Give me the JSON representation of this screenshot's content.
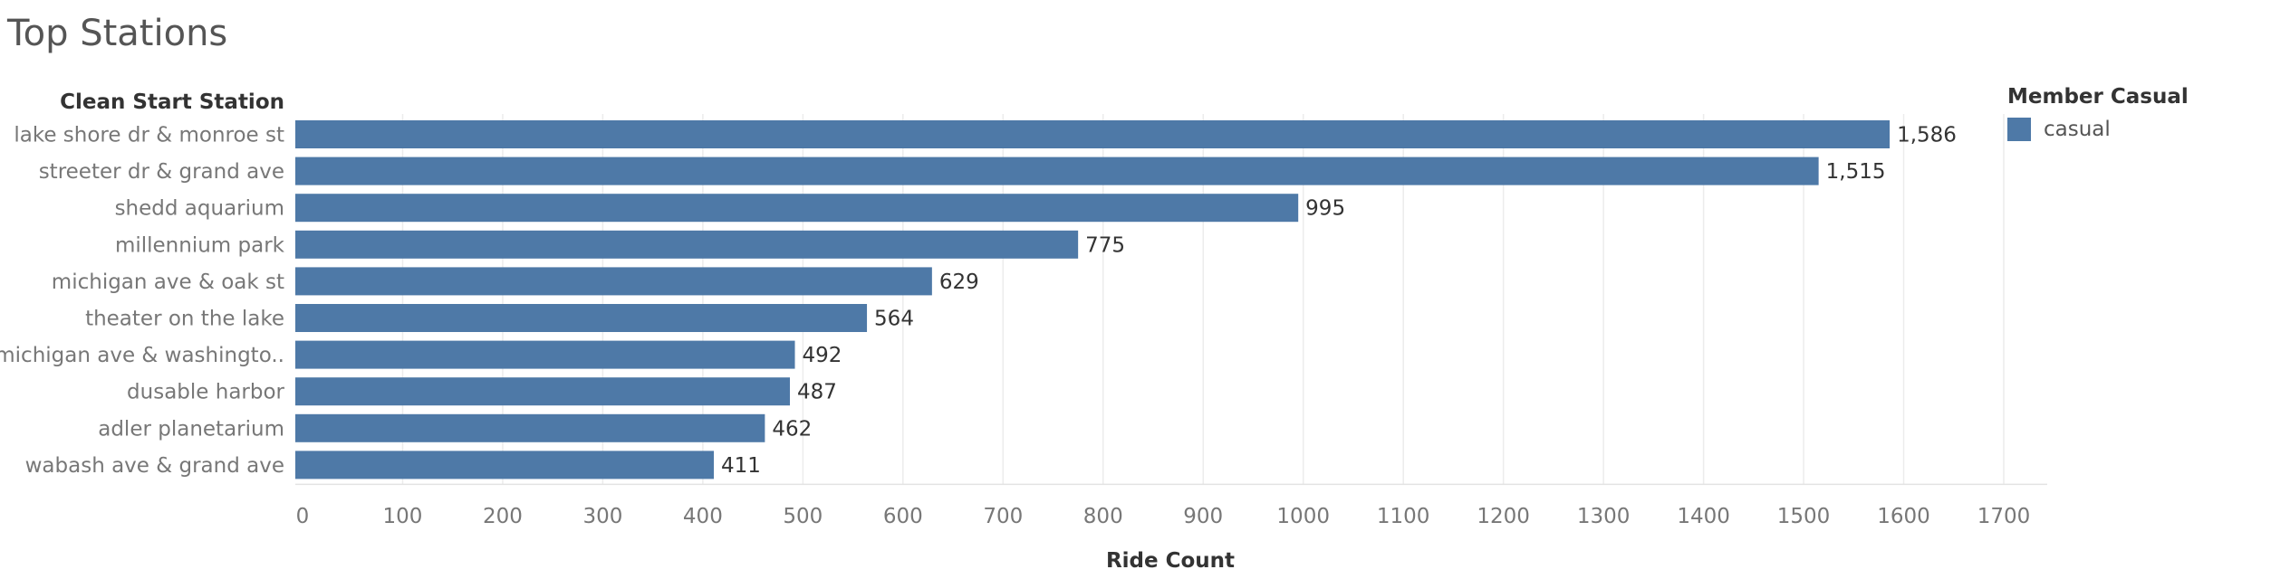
{
  "title": "Top Stations",
  "colors": {
    "bar": "#4e79a7",
    "grid": "#ececec",
    "text_dark": "#333333",
    "text_muted": "#777777"
  },
  "legend": {
    "title": "Member Casual",
    "items": [
      {
        "label": "casual",
        "color": "#4e79a7"
      }
    ]
  },
  "chart_data": {
    "type": "bar",
    "orientation": "horizontal",
    "title": "Top Stations",
    "ylabel": "Clean Start Station",
    "xlabel": "Ride Count",
    "categories": [
      "lake shore dr & monroe st",
      "streeter dr & grand ave",
      "shedd aquarium",
      "millennium park",
      "michigan ave & oak st",
      "theater on the lake",
      "michigan ave & washingto..",
      "dusable harbor",
      "adler planetarium",
      "wabash ave & grand ave"
    ],
    "series": [
      {
        "name": "casual",
        "values": [
          1586,
          1515,
          995,
          775,
          629,
          564,
          492,
          487,
          462,
          411
        ],
        "labels": [
          "1,586",
          "1,515",
          "995",
          "775",
          "629",
          "564",
          "492",
          "487",
          "462",
          "411"
        ]
      }
    ],
    "xlim": [
      0,
      1750
    ],
    "xticks": [
      0,
      100,
      200,
      300,
      400,
      500,
      600,
      700,
      800,
      900,
      1000,
      1100,
      1200,
      1300,
      1400,
      1500,
      1600,
      1700
    ],
    "grid": true,
    "legend_position": "right"
  }
}
